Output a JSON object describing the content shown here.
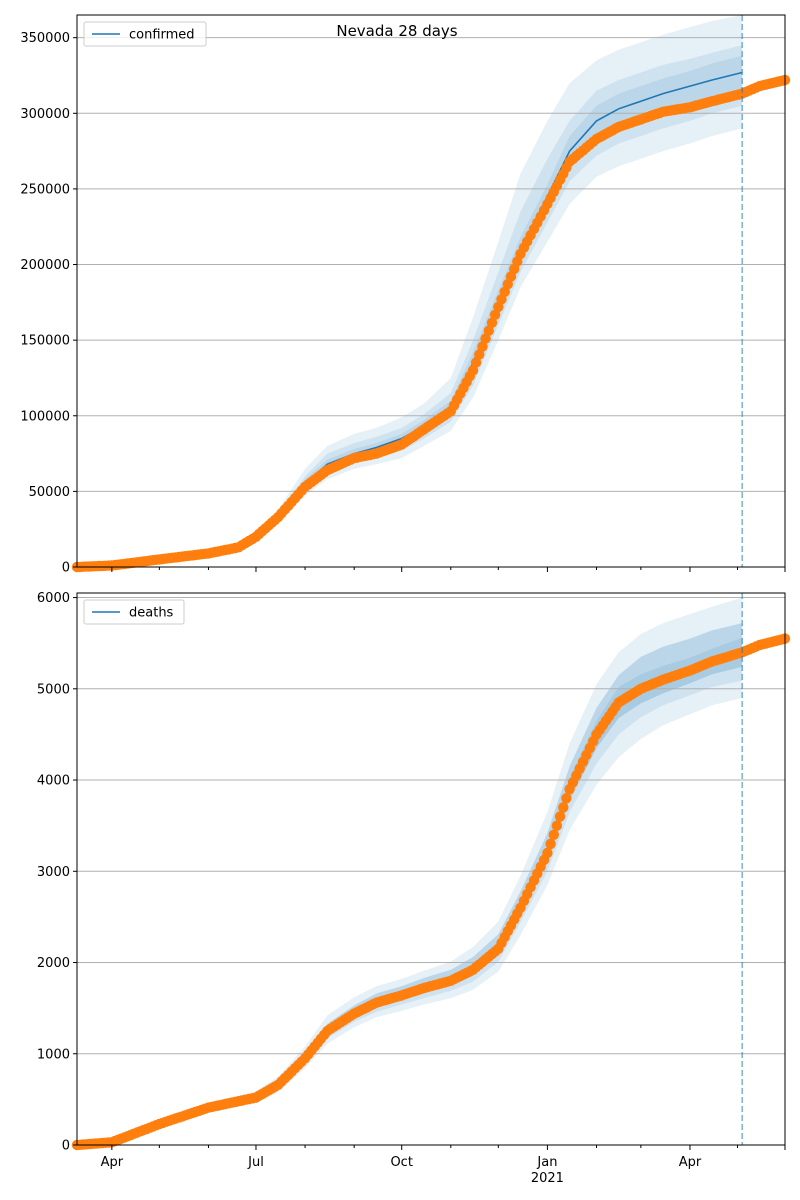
{
  "figure": {
    "title": "Nevada 28 days",
    "x_ticks": [
      "Apr",
      "Jul",
      "Oct",
      "Jan",
      "Apr"
    ],
    "x_year_label": "2021"
  },
  "colors": {
    "model": "#1f77b4",
    "observed": "#ff7f0e",
    "band": "#1f77b4",
    "grid": "#b0b0b0"
  },
  "chart_data": [
    {
      "type": "line",
      "title": "Nevada 28 days",
      "legend": [
        "confirmed"
      ],
      "legend_position": "top-left",
      "grid": true,
      "x_range": [
        "2020-03-10",
        "2021-05-31"
      ],
      "forecast_cutoff": "2021-05-04",
      "ylim": [
        0,
        365000
      ],
      "yticks": [
        0,
        50000,
        100000,
        150000,
        200000,
        250000,
        300000,
        350000
      ],
      "x": [
        "2020-03-10",
        "2020-04-01",
        "2020-05-01",
        "2020-06-01",
        "2020-06-20",
        "2020-07-01",
        "2020-07-15",
        "2020-08-01",
        "2020-08-15",
        "2020-09-01",
        "2020-09-15",
        "2020-10-01",
        "2020-10-15",
        "2020-11-01",
        "2020-11-15",
        "2020-12-01",
        "2020-12-15",
        "2021-01-01",
        "2021-01-15",
        "2021-02-01",
        "2021-02-15",
        "2021-03-01",
        "2021-03-15",
        "2021-04-01",
        "2021-04-15",
        "2021-05-04"
      ],
      "series": [
        {
          "name": "confirmed",
          "role": "model",
          "values": [
            0,
            1000,
            5000,
            9000,
            13000,
            20000,
            33000,
            55000,
            68000,
            75000,
            79000,
            85000,
            93000,
            105000,
            135000,
            175000,
            210000,
            245000,
            275000,
            295000,
            303000,
            308000,
            313000,
            318000,
            322000,
            327000
          ]
        },
        {
          "role": "observed",
          "values": [
            0,
            1000,
            5000,
            9000,
            13000,
            20000,
            33000,
            53000,
            64000,
            72000,
            75000,
            81000,
            91000,
            103000,
            130000,
            172000,
            207000,
            240000,
            268000,
            283000,
            291000,
            296000,
            301000,
            304000,
            308000,
            313000
          ]
        }
      ],
      "observed_tail": {
        "x": [
          "2021-05-15",
          "2021-05-31"
        ],
        "values": [
          318000,
          322000
        ]
      },
      "bands": [
        {
          "lower": [
            0,
            800,
            4500,
            8000,
            11500,
            18000,
            29000,
            47000,
            58000,
            65000,
            68000,
            72000,
            80000,
            90000,
            112000,
            150000,
            185000,
            215000,
            240000,
            258000,
            265000,
            270000,
            275000,
            280000,
            285000,
            290000
          ],
          "upper": [
            0,
            1200,
            5500,
            10000,
            14500,
            23000,
            38000,
            65000,
            80000,
            88000,
            92000,
            99000,
            108000,
            125000,
            165000,
            215000,
            260000,
            295000,
            320000,
            335000,
            342000,
            347000,
            352000,
            357000,
            361000,
            365000
          ]
        },
        {
          "lower": [
            0,
            850,
            4650,
            8300,
            12000,
            19000,
            31000,
            50000,
            62000,
            69000,
            72000,
            77000,
            85000,
            96000,
            120000,
            160000,
            195000,
            228000,
            255000,
            272000,
            280000,
            285000,
            290000,
            295000,
            300000,
            305000
          ],
          "upper": [
            0,
            1150,
            5350,
            9600,
            14000,
            22000,
            36000,
            60000,
            75000,
            82000,
            86000,
            92000,
            101000,
            115000,
            150000,
            195000,
            235000,
            270000,
            295000,
            315000,
            322000,
            327000,
            332000,
            336000,
            340000,
            345000
          ]
        },
        {
          "lower": [
            0,
            900,
            4800,
            8600,
            12500,
            19500,
            32000,
            52000,
            65000,
            72000,
            75000,
            81000,
            89000,
            100000,
            128000,
            168000,
            202000,
            238000,
            265000,
            285000,
            293000,
            297000,
            302000,
            306000,
            310000,
            312000
          ],
          "upper": [
            0,
            1100,
            5200,
            9400,
            13500,
            21000,
            34500,
            58000,
            71000,
            78000,
            82000,
            88000,
            97000,
            110000,
            142000,
            183000,
            218000,
            253000,
            285000,
            305000,
            313000,
            318000,
            323000,
            328000,
            333000,
            338000
          ]
        }
      ]
    },
    {
      "type": "line",
      "title": "",
      "legend": [
        "deaths"
      ],
      "legend_position": "top-left",
      "grid": true,
      "x_range": [
        "2020-03-10",
        "2021-05-31"
      ],
      "forecast_cutoff": "2021-05-04",
      "ylim": [
        0,
        6050
      ],
      "yticks": [
        0,
        1000,
        2000,
        3000,
        4000,
        5000,
        6000
      ],
      "x": [
        "2020-03-10",
        "2020-04-01",
        "2020-05-01",
        "2020-06-01",
        "2020-06-20",
        "2020-07-01",
        "2020-07-15",
        "2020-08-01",
        "2020-08-15",
        "2020-09-01",
        "2020-09-15",
        "2020-10-01",
        "2020-10-15",
        "2020-11-01",
        "2020-11-15",
        "2020-12-01",
        "2020-12-15",
        "2021-01-01",
        "2021-01-15",
        "2021-02-01",
        "2021-02-15",
        "2021-03-01",
        "2021-03-15",
        "2021-04-01",
        "2021-04-15",
        "2021-05-04"
      ],
      "series": [
        {
          "name": "deaths",
          "role": "model",
          "values": [
            0,
            30,
            230,
            410,
            480,
            520,
            660,
            950,
            1250,
            1440,
            1560,
            1640,
            1720,
            1800,
            1920,
            2150,
            2600,
            3200,
            3900,
            4500,
            4850,
            5000,
            5100,
            5200,
            5300,
            5400
          ]
        },
        {
          "role": "observed",
          "values": [
            0,
            30,
            230,
            410,
            480,
            520,
            660,
            950,
            1250,
            1440,
            1560,
            1640,
            1720,
            1800,
            1920,
            2150,
            2600,
            3200,
            3900,
            4500,
            4850,
            5000,
            5100,
            5200,
            5300,
            5400
          ]
        }
      ],
      "observed_tail": {
        "x": [
          "2021-05-15",
          "2021-05-31"
        ],
        "values": [
          5480,
          5550
        ]
      },
      "bands": [
        {
          "lower": [
            0,
            25,
            200,
            360,
            420,
            460,
            580,
            840,
            1110,
            1290,
            1400,
            1470,
            1540,
            1610,
            1700,
            1900,
            2300,
            2850,
            3450,
            3950,
            4250,
            4450,
            4600,
            4720,
            4820,
            4900
          ],
          "upper": [
            0,
            35,
            260,
            460,
            540,
            590,
            750,
            1080,
            1420,
            1620,
            1740,
            1820,
            1910,
            2010,
            2170,
            2450,
            2950,
            3650,
            4400,
            5050,
            5400,
            5600,
            5720,
            5820,
            5900,
            6000
          ]
        },
        {
          "lower": [
            0,
            27,
            212,
            380,
            445,
            485,
            615,
            890,
            1170,
            1350,
            1460,
            1540,
            1610,
            1690,
            1790,
            2010,
            2440,
            3000,
            3650,
            4180,
            4500,
            4690,
            4820,
            4930,
            5020,
            5090
          ],
          "upper": [
            0,
            33,
            248,
            440,
            515,
            560,
            705,
            1010,
            1330,
            1530,
            1660,
            1740,
            1830,
            1920,
            2060,
            2310,
            2780,
            3420,
            4150,
            4790,
            5150,
            5350,
            5460,
            5550,
            5640,
            5720
          ]
        },
        {
          "lower": [
            0,
            28,
            220,
            395,
            462,
            500,
            638,
            920,
            1210,
            1395,
            1510,
            1590,
            1665,
            1745,
            1855,
            2080,
            2520,
            3100,
            3780,
            4350,
            4680,
            4840,
            4950,
            5060,
            5160,
            5240
          ]
        },
        {
          "upper": [
            0,
            32,
            240,
            425,
            498,
            540,
            682,
            980,
            1290,
            1485,
            1610,
            1690,
            1775,
            1855,
            1985,
            2220,
            2680,
            3300,
            4020,
            4650,
            5020,
            5160,
            5250,
            5340,
            5440,
            5560
          ]
        }
      ]
    }
  ]
}
